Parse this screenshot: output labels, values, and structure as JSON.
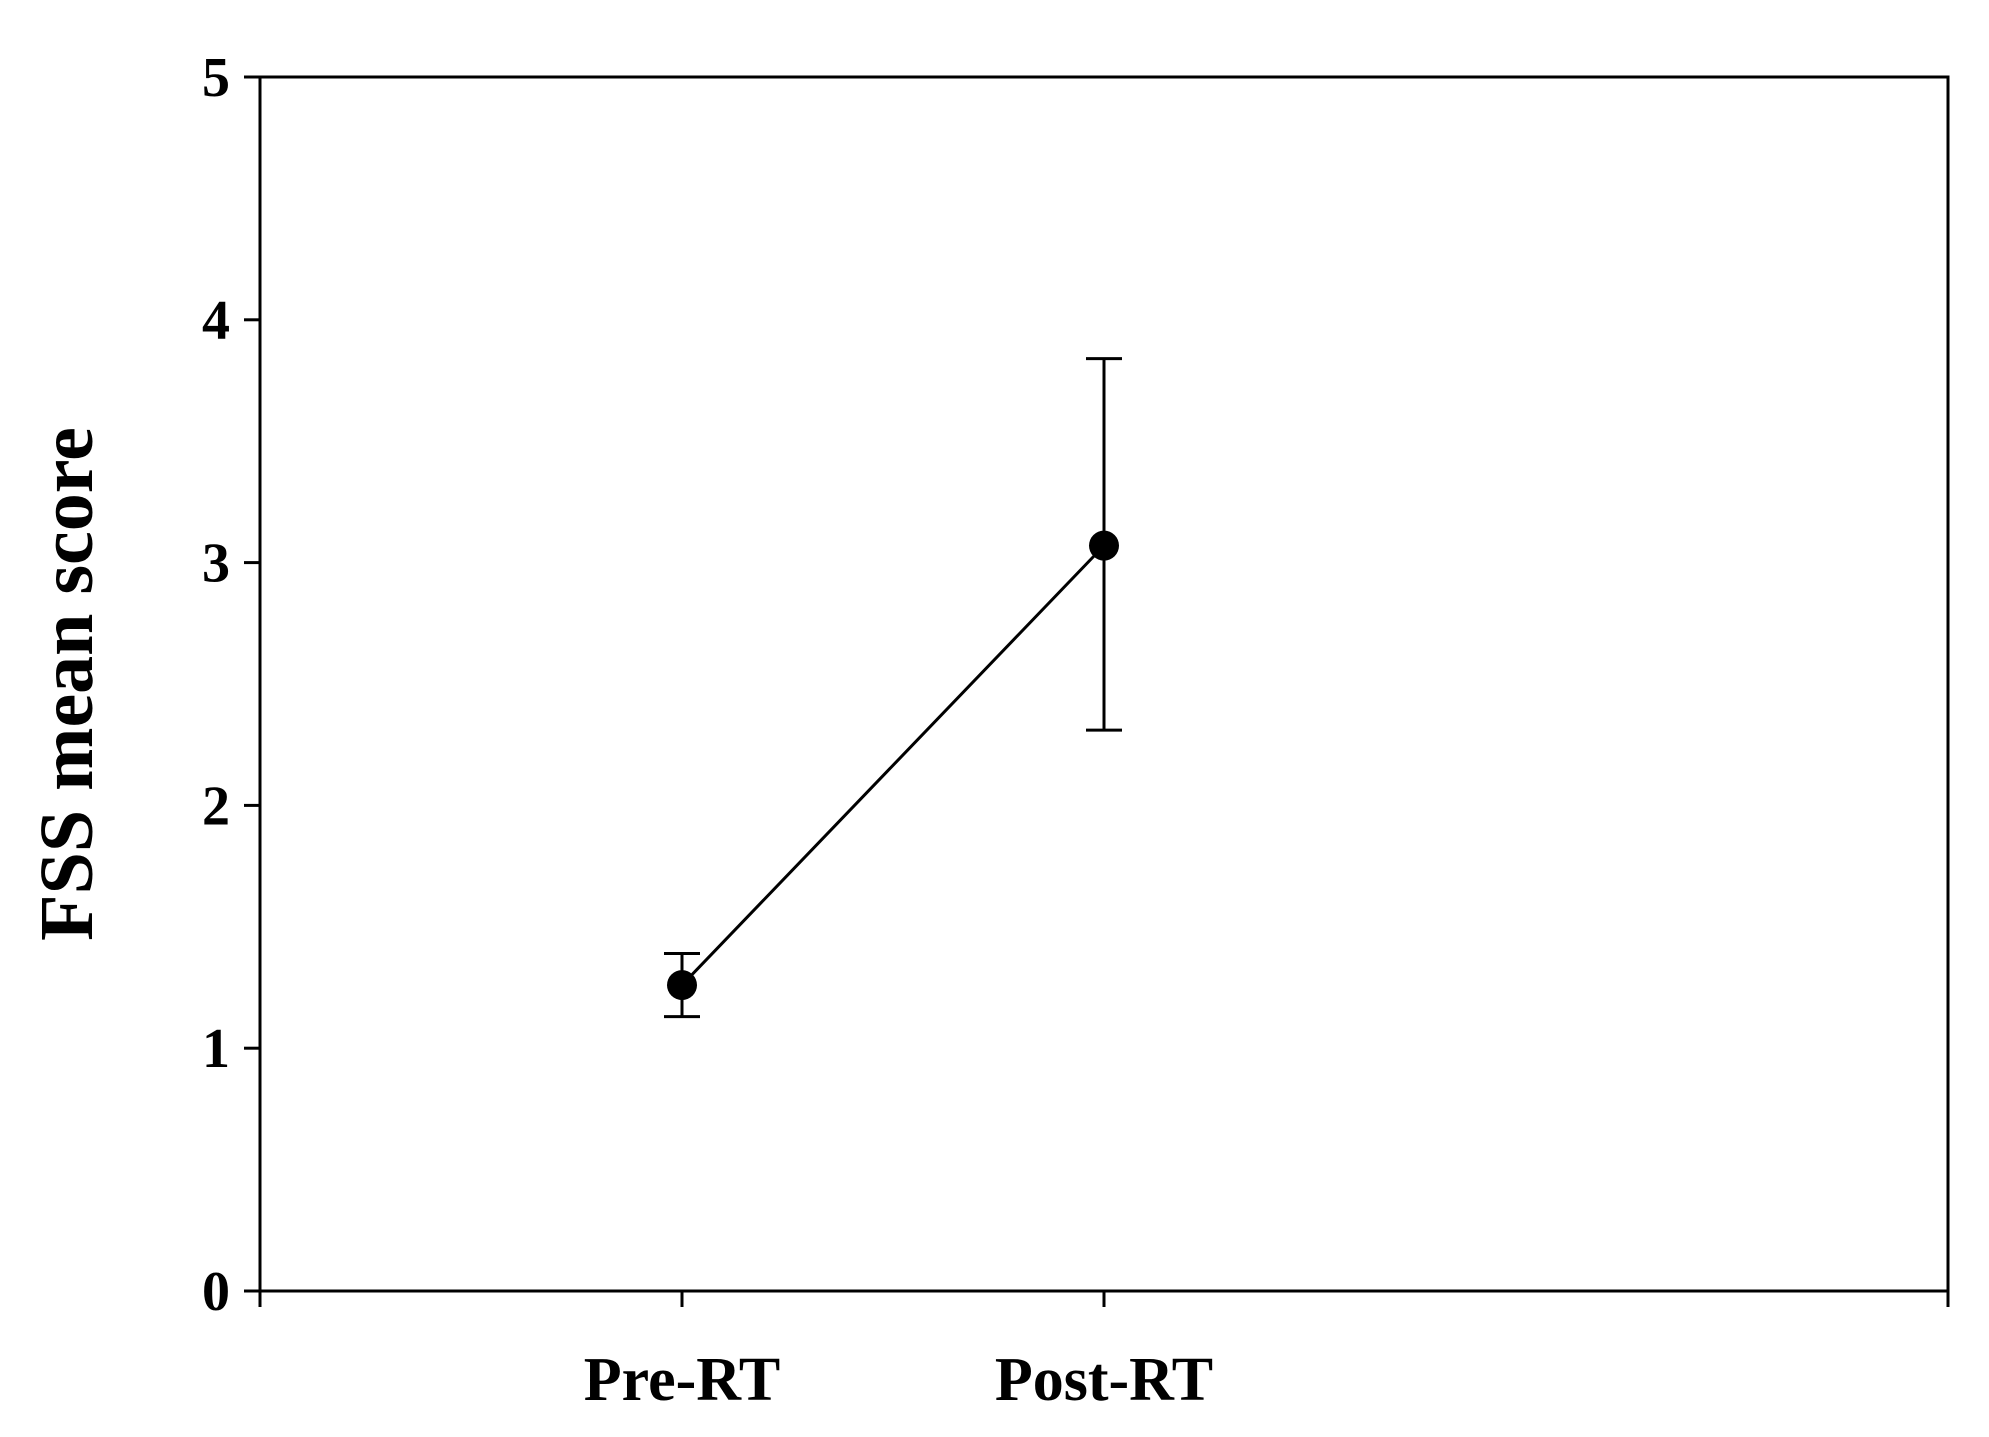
{
  "chart_data": {
    "type": "line",
    "title": "",
    "xlabel": "",
    "ylabel": "FSS mean score",
    "categories": [
      "Pre-RT",
      "Post-RT"
    ],
    "series": [
      {
        "values": [
          1.26,
          3.07
        ],
        "error_lower": [
          1.13,
          2.31
        ],
        "error_upper": [
          1.39,
          3.84
        ]
      }
    ],
    "ylim": [
      0,
      5
    ],
    "yticks": [
      "0",
      "1",
      "2",
      "3",
      "4",
      "5"
    ],
    "grid": false,
    "legend": "none",
    "colors": {
      "line": "#000000",
      "marker": "#000000",
      "axis": "#000000"
    }
  }
}
